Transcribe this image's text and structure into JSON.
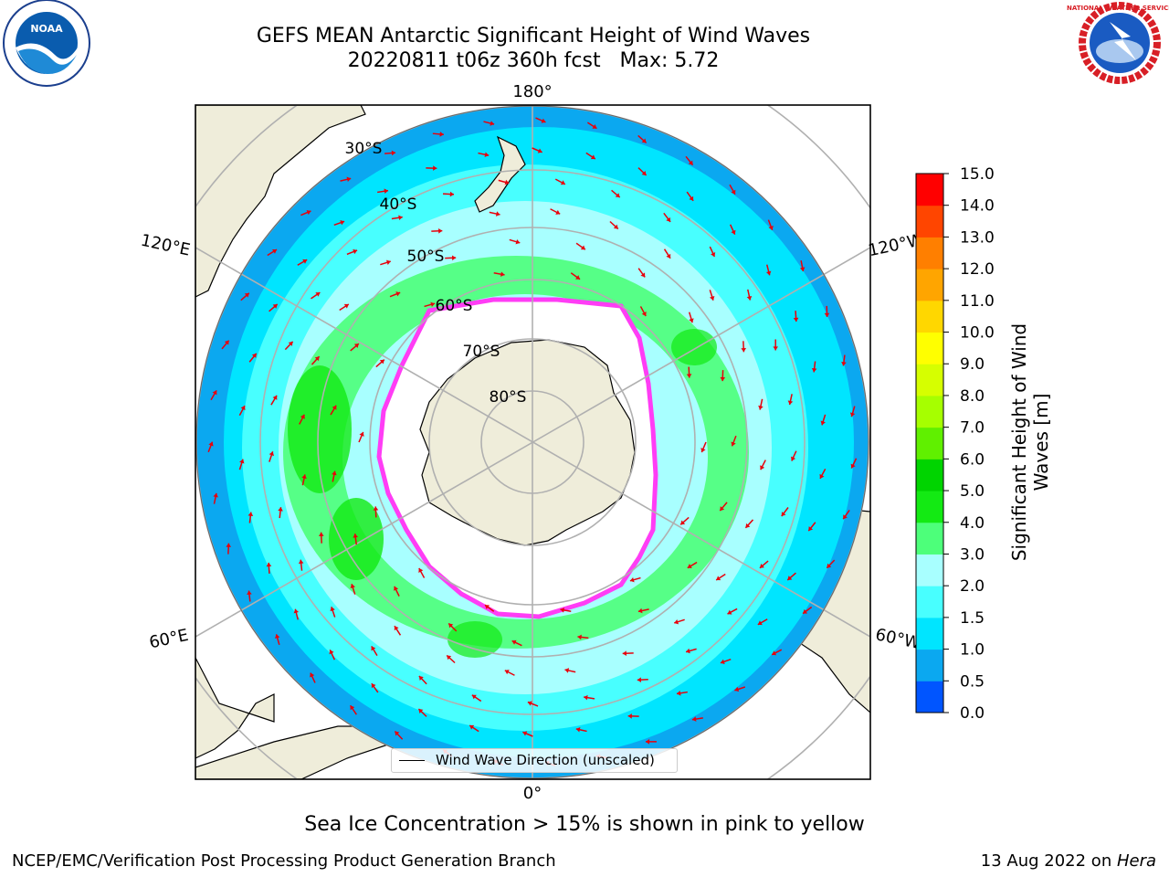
{
  "header": {
    "title_line1": "GEFS MEAN Antarctic Significant Height of Wind Waves",
    "title_line2": "20220811 t06z 360h fcst   Max: 5.72"
  },
  "logos": {
    "left": "noaa-logo",
    "right": "national-weather-service-logo",
    "left_text": "NOAA",
    "right_text": "NATIONAL WEATHER SERVICE"
  },
  "map": {
    "projection": "south-polar-stereographic",
    "longitude_labels": [
      "180°",
      "120°E",
      "120°W",
      "60°E",
      "60°W",
      "0°"
    ],
    "latitude_labels": [
      "30°S",
      "40°S",
      "50°S",
      "60°S",
      "70°S",
      "80°S"
    ],
    "legend_label": "Wind Wave Direction (unscaled)",
    "arrow_color": "#e8000b",
    "land_color": "#efedda",
    "gridline_color": "#b0b0b0"
  },
  "colorbar": {
    "label": "Significant Height of Wind Waves [m]",
    "ticks": [
      "0.0",
      "0.5",
      "1.0",
      "1.5",
      "2.0",
      "3.0",
      "4.0",
      "5.0",
      "6.0",
      "7.0",
      "8.0",
      "9.0",
      "10.0",
      "11.0",
      "12.0",
      "13.0",
      "14.0",
      "15.0"
    ],
    "colors": [
      "#0000ff",
      "#0055ff",
      "#0ba8f0",
      "#00e5ff",
      "#48ffff",
      "#a8ffff",
      "#4dff7a",
      "#13ea13",
      "#00d400",
      "#60f000",
      "#a6ff00",
      "#d6ff00",
      "#ffff00",
      "#ffd700",
      "#ffa500",
      "#ff7f00",
      "#ff4500",
      "#ff0000"
    ]
  },
  "notes": {
    "sea_ice": "Sea Ice Concentration > 15% is shown in pink to yellow"
  },
  "footer": {
    "left": "NCEP/EMC/Verification Post Processing Product Generation Branch",
    "date": "13 Aug 2022 on ",
    "host": "Hera"
  }
}
